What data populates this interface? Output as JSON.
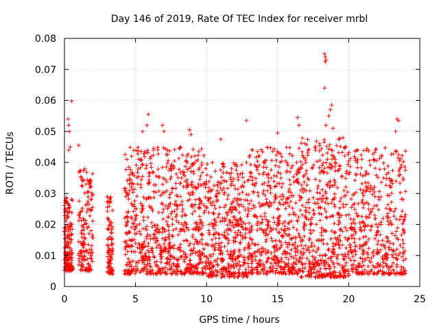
{
  "chart_data": {
    "type": "scatter",
    "title": "Day 146 of 2019, Rate Of TEC Index for receiver mrbl",
    "xlabel": "GPS time / hours",
    "ylabel": "ROTI / TECUs",
    "xlim": [
      0,
      25
    ],
    "ylim": [
      0,
      0.08
    ],
    "xticks": [
      0,
      5,
      10,
      15,
      20,
      25
    ],
    "yticks": [
      0,
      0.01,
      0.02,
      0.03,
      0.04,
      0.05,
      0.06,
      0.07,
      0.08
    ],
    "xtick_labels": [
      "0",
      "5",
      "10",
      "15",
      "20",
      "25"
    ],
    "ytick_labels": [
      "0",
      "0.01",
      "0.02",
      "0.03",
      "0.04",
      "0.05",
      "0.06",
      "0.07",
      "0.08"
    ],
    "grid": true,
    "marker": "+",
    "series_color": "#ff0000",
    "clusters": [
      {
        "x": [
          0.0,
          0.6
        ],
        "ymin": 0.005,
        "ymax": 0.03,
        "n": 160
      },
      {
        "x": [
          1.0,
          2.0
        ],
        "ymin": 0.005,
        "ymax": 0.038,
        "n": 150
      },
      {
        "x": [
          3.0,
          3.4
        ],
        "ymin": 0.004,
        "ymax": 0.03,
        "n": 90
      },
      {
        "x": [
          4.2,
          7.0
        ],
        "ymin": 0.004,
        "ymax": 0.045,
        "n": 380
      },
      {
        "x": [
          7.0,
          10.0
        ],
        "ymin": 0.004,
        "ymax": 0.045,
        "n": 420
      },
      {
        "x": [
          10.0,
          13.0
        ],
        "ymin": 0.003,
        "ymax": 0.04,
        "n": 420
      },
      {
        "x": [
          13.0,
          16.5
        ],
        "ymin": 0.004,
        "ymax": 0.045,
        "n": 460
      },
      {
        "x": [
          16.5,
          20.0
        ],
        "ymin": 0.003,
        "ymax": 0.048,
        "n": 480
      },
      {
        "x": [
          20.0,
          24.0
        ],
        "ymin": 0.004,
        "ymax": 0.045,
        "n": 460
      }
    ],
    "highlights": [
      {
        "x": 0.25,
        "y": 0.054
      },
      {
        "x": 0.3,
        "y": 0.052
      },
      {
        "x": 0.35,
        "y": 0.05
      },
      {
        "x": 0.5,
        "y": 0.0598
      },
      {
        "x": 0.4,
        "y": 0.045
      },
      {
        "x": 0.3,
        "y": 0.044
      },
      {
        "x": 1.0,
        "y": 0.0455
      },
      {
        "x": 5.9,
        "y": 0.0555
      },
      {
        "x": 5.8,
        "y": 0.052
      },
      {
        "x": 5.5,
        "y": 0.05
      },
      {
        "x": 6.9,
        "y": 0.052
      },
      {
        "x": 7.0,
        "y": 0.05
      },
      {
        "x": 8.8,
        "y": 0.0505
      },
      {
        "x": 8.9,
        "y": 0.049
      },
      {
        "x": 12.8,
        "y": 0.0535
      },
      {
        "x": 16.4,
        "y": 0.0545
      },
      {
        "x": 16.5,
        "y": 0.052
      },
      {
        "x": 18.3,
        "y": 0.075
      },
      {
        "x": 18.35,
        "y": 0.074
      },
      {
        "x": 18.4,
        "y": 0.073
      },
      {
        "x": 18.35,
        "y": 0.0725
      },
      {
        "x": 18.3,
        "y": 0.064
      },
      {
        "x": 18.8,
        "y": 0.0585
      },
      {
        "x": 18.7,
        "y": 0.057
      },
      {
        "x": 18.6,
        "y": 0.055
      },
      {
        "x": 18.9,
        "y": 0.051
      },
      {
        "x": 18.4,
        "y": 0.052
      },
      {
        "x": 23.4,
        "y": 0.054
      },
      {
        "x": 23.5,
        "y": 0.0535
      },
      {
        "x": 23.3,
        "y": 0.05
      },
      {
        "x": 15.0,
        "y": 0.0495
      },
      {
        "x": 11.0,
        "y": 0.0475
      }
    ]
  }
}
